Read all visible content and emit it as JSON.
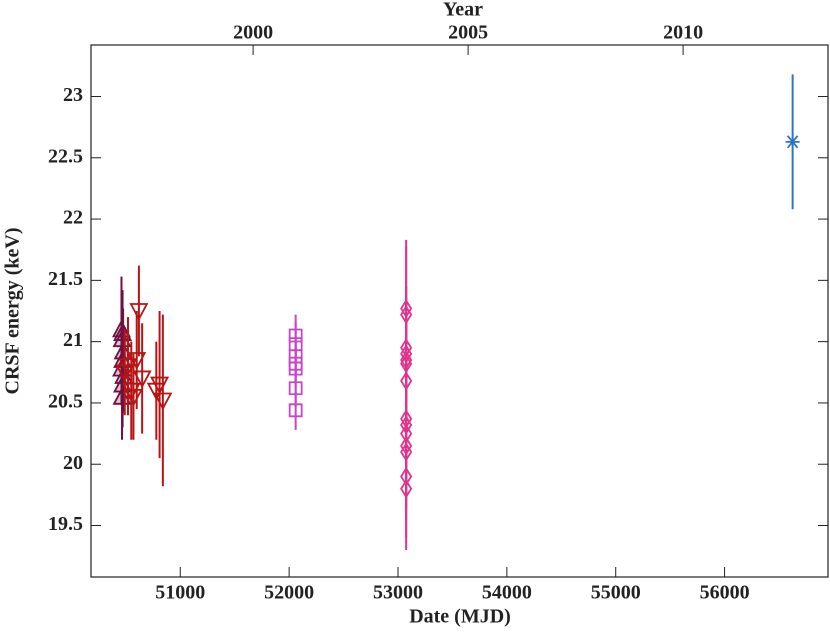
{
  "chart_data": {
    "type": "scatter",
    "xlabel": "Date (MJD)",
    "ylabel": "CRSF energy (keV)",
    "x2label": "Year",
    "xlim": [
      50180,
      56950
    ],
    "xticks": [
      51000,
      52000,
      53000,
      54000,
      55000,
      56000
    ],
    "ylim": [
      19.08,
      23.42
    ],
    "yticks": [
      19.5,
      20,
      20.5,
      21,
      21.5,
      22,
      22.5,
      23
    ],
    "x2lim": [
      1996.23,
      2013.37
    ],
    "x2ticks": [
      2000,
      2005,
      2010
    ],
    "series": [
      {
        "marker": "triangle-up",
        "color": "#6e1040",
        "x": [
          50460,
          50470,
          50465,
          50475,
          50470,
          50460,
          50480,
          50470,
          50465
        ],
        "values": [
          21.1,
          21.07,
          21.02,
          20.92,
          20.85,
          20.78,
          20.72,
          20.65,
          20.55
        ],
        "errors": [
          0.43,
          0.35,
          0.3,
          0.35,
          0.3,
          0.3,
          0.3,
          0.35,
          0.35
        ]
      },
      {
        "marker": "triangle-down",
        "color": "#b81414",
        "x": [
          50490,
          50520,
          50550,
          50570,
          50600,
          50620,
          50650,
          50780,
          50810,
          50840
        ],
        "values": [
          20.75,
          20.8,
          20.6,
          20.55,
          20.85,
          21.25,
          20.7,
          20.6,
          20.65,
          20.52
        ],
        "errors": [
          0.35,
          0.4,
          0.4,
          0.35,
          0.4,
          0.37,
          0.45,
          0.4,
          0.6,
          0.7
        ]
      },
      {
        "marker": "square",
        "color": "#c845c8",
        "x": [
          52060,
          52060,
          52060,
          52060,
          52060,
          52060,
          52060
        ],
        "values": [
          21.05,
          20.98,
          20.88,
          20.82,
          20.78,
          20.62,
          20.44
        ],
        "errors": [
          0.17,
          0.18,
          0.15,
          0.15,
          0.17,
          0.15,
          0.16
        ]
      },
      {
        "marker": "diamond",
        "color": "#e0348c",
        "x": [
          53075,
          53075,
          53075,
          53075,
          53075,
          53075,
          53075,
          53075,
          53075,
          53075,
          53075,
          53075,
          53075,
          53075
        ],
        "values": [
          21.27,
          21.22,
          20.95,
          20.9,
          20.85,
          20.82,
          20.68,
          20.37,
          20.32,
          20.25,
          20.15,
          20.1,
          19.9,
          19.8
        ],
        "errors": [
          0.56,
          0.55,
          0.5,
          0.55,
          0.5,
          0.55,
          0.6,
          0.55,
          0.5,
          0.55,
          0.5,
          0.55,
          0.5,
          0.5
        ]
      },
      {
        "marker": "asterisk",
        "color": "#2a74c2",
        "x": [
          56625
        ],
        "values": [
          22.63
        ],
        "errors": [
          0.55
        ]
      }
    ]
  }
}
